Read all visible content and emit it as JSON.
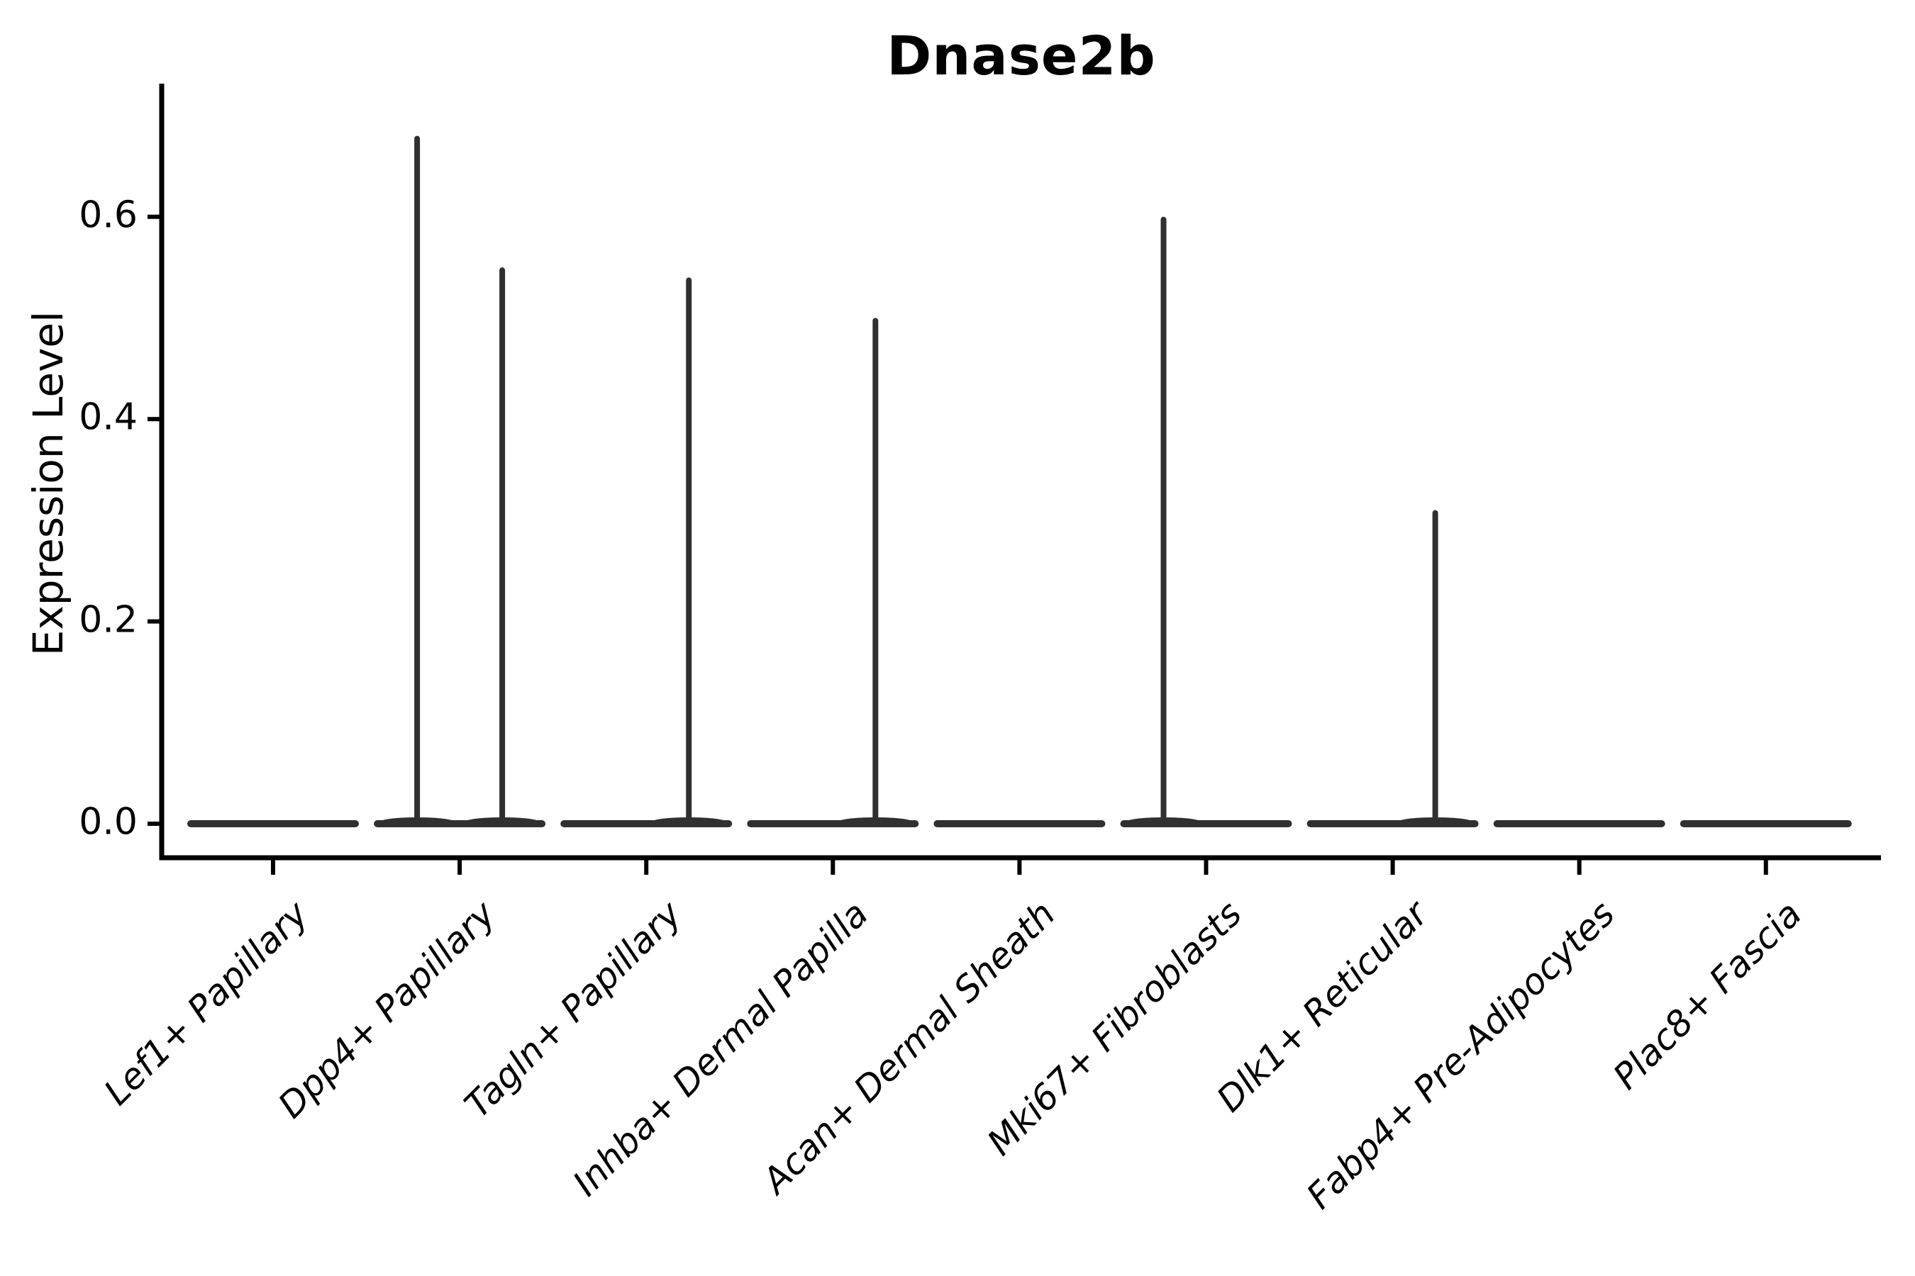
{
  "title": "Dnase2b",
  "y_axis": {
    "label": "Expression Level",
    "tick_labels": [
      "0.0",
      "0.2",
      "0.4",
      "0.6"
    ]
  },
  "chart_data": {
    "type": "violin",
    "title": "Dnase2b",
    "xlabel": "",
    "ylabel": "Expression Level",
    "ylim": [
      -0.036,
      0.716
    ],
    "yticks": [
      0.0,
      0.2,
      0.4,
      0.6
    ],
    "ytick_labels": [
      "0.0",
      "0.2",
      "0.4",
      "0.6"
    ],
    "grid": false,
    "legend_position": "none",
    "violin_color": "#303030",
    "axis_color": "#000000",
    "categories": [
      "Lef1+ Papillary",
      "Dpp4+ Papillary",
      "Tagln+ Papillary",
      "Inhba+ Dermal Papilla",
      "Acan+ Dermal Sheath",
      "Mki67+ Fibroblasts",
      "Dlk1+ Reticular",
      "Fabp4+ Pre-Adipocytes",
      "Plac8+ Fascia"
    ],
    "violins": [
      {
        "label": "Lef1+ Papillary",
        "bulk_value": 0,
        "left_spike_max": 0,
        "right_spike_max": 0
      },
      {
        "label": "Dpp4+ Papillary",
        "bulk_value": 0,
        "left_spike_max": 0.68,
        "right_spike_max": 0.55
      },
      {
        "label": "Tagln+ Papillary",
        "bulk_value": 0,
        "left_spike_max": 0,
        "right_spike_max": 0.54
      },
      {
        "label": "Inhba+ Dermal Papilla",
        "bulk_value": 0,
        "left_spike_max": 0,
        "right_spike_max": 0.5
      },
      {
        "label": "Acan+ Dermal Sheath",
        "bulk_value": 0,
        "left_spike_max": 0,
        "right_spike_max": 0
      },
      {
        "label": "Mki67+ Fibroblasts",
        "bulk_value": 0,
        "left_spike_max": 0.6,
        "right_spike_max": 0
      },
      {
        "label": "Dlk1+ Reticular",
        "bulk_value": 0,
        "left_spike_max": 0,
        "right_spike_max": 0.31
      },
      {
        "label": "Fabp4+ Pre-Adipocytes",
        "bulk_value": 0,
        "left_spike_max": 0,
        "right_spike_max": 0
      },
      {
        "label": "Plac8+ Fascia",
        "bulk_value": 0,
        "left_spike_max": 0,
        "right_spike_max": 0
      }
    ]
  }
}
